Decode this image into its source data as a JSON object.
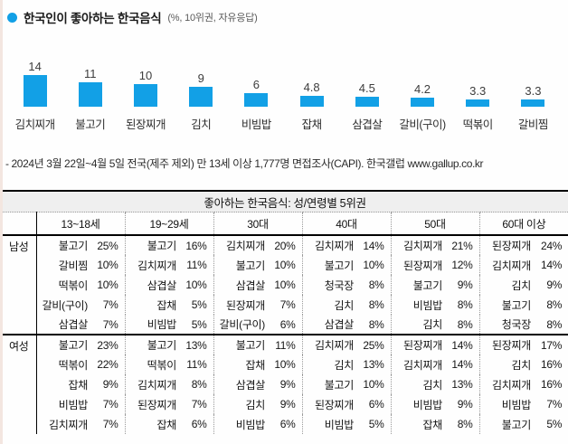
{
  "accent": {
    "bar_color": "#12a0e6",
    "bullet_color": "#12a0e6"
  },
  "header": {
    "title": "한국인이 좋아하는 한국음식",
    "subtitle": "(%, 10위권, 자유응답)"
  },
  "chart_data": {
    "type": "bar",
    "title": "한국인이 좋아하는 한국음식 (%, 10위권, 자유응답)",
    "categories": [
      "김치찌개",
      "불고기",
      "된장찌개",
      "김치",
      "비빔밥",
      "잡채",
      "삼겹살",
      "갈비(구이)",
      "떡볶이",
      "갈비찜"
    ],
    "values": [
      14,
      11,
      10,
      9,
      6,
      4.8,
      4.5,
      4.2,
      3.3,
      3.3
    ],
    "xlabel": "",
    "ylabel": "%",
    "ylim": [
      0,
      16
    ],
    "grid": false,
    "legend": false,
    "bar_color": "#12a0e6",
    "value_labels": "above bars"
  },
  "footnote": "- 2024년 3월 22일~4월 5일 전국(제주 제외) 만 13세 이상 1,777명 면접조사(CAPI). 한국갤럽 www.gallup.co.kr",
  "table": {
    "title": "좋아하는 한국음식: 성/연령별 5위권",
    "age_headers": [
      "13~18세",
      "19~29세",
      "30대",
      "40대",
      "50대",
      "60대 이상"
    ],
    "sections": [
      {
        "label": "남성",
        "columns": [
          [
            [
              "불고기",
              "25%"
            ],
            [
              "갈비찜",
              "10%"
            ],
            [
              "떡볶이",
              "10%"
            ],
            [
              "갈비(구이)",
              "7%"
            ],
            [
              "삼겹살",
              "7%"
            ]
          ],
          [
            [
              "불고기",
              "16%"
            ],
            [
              "김치찌개",
              "11%"
            ],
            [
              "삼겹살",
              "10%"
            ],
            [
              "잡채",
              "5%"
            ],
            [
              "비빔밥",
              "5%"
            ]
          ],
          [
            [
              "김치찌개",
              "20%"
            ],
            [
              "불고기",
              "10%"
            ],
            [
              "삼겹살",
              "10%"
            ],
            [
              "된장찌개",
              "7%"
            ],
            [
              "갈비(구이)",
              "6%"
            ]
          ],
          [
            [
              "김치찌개",
              "14%"
            ],
            [
              "불고기",
              "10%"
            ],
            [
              "청국장",
              "8%"
            ],
            [
              "김치",
              "8%"
            ],
            [
              "삼겹살",
              "8%"
            ]
          ],
          [
            [
              "김치찌개",
              "21%"
            ],
            [
              "된장찌개",
              "12%"
            ],
            [
              "불고기",
              "9%"
            ],
            [
              "비빔밥",
              "8%"
            ],
            [
              "김치",
              "8%"
            ]
          ],
          [
            [
              "된장찌개",
              "24%"
            ],
            [
              "김치찌개",
              "14%"
            ],
            [
              "김치",
              "9%"
            ],
            [
              "불고기",
              "8%"
            ],
            [
              "청국장",
              "8%"
            ]
          ]
        ]
      },
      {
        "label": "여성",
        "columns": [
          [
            [
              "불고기",
              "23%"
            ],
            [
              "떡볶이",
              "22%"
            ],
            [
              "잡채",
              "9%"
            ],
            [
              "비빔밥",
              "7%"
            ],
            [
              "김치찌개",
              "7%"
            ]
          ],
          [
            [
              "불고기",
              "13%"
            ],
            [
              "떡볶이",
              "11%"
            ],
            [
              "김치찌개",
              "8%"
            ],
            [
              "된장찌개",
              "7%"
            ],
            [
              "잡채",
              "6%"
            ]
          ],
          [
            [
              "불고기",
              "11%"
            ],
            [
              "잡채",
              "10%"
            ],
            [
              "삼겹살",
              "9%"
            ],
            [
              "김치",
              "9%"
            ],
            [
              "비빔밥",
              "6%"
            ]
          ],
          [
            [
              "김치찌개",
              "25%"
            ],
            [
              "김치",
              "13%"
            ],
            [
              "불고기",
              "10%"
            ],
            [
              "된장찌개",
              "6%"
            ],
            [
              "비빔밥",
              "5%"
            ]
          ],
          [
            [
              "된장찌개",
              "14%"
            ],
            [
              "김치찌개",
              "14%"
            ],
            [
              "김치",
              "13%"
            ],
            [
              "비빔밥",
              "9%"
            ],
            [
              "잡채",
              "8%"
            ]
          ],
          [
            [
              "된장찌개",
              "17%"
            ],
            [
              "김치",
              "16%"
            ],
            [
              "김치찌개",
              "16%"
            ],
            [
              "비빔밥",
              "7%"
            ],
            [
              "불고기",
              "5%"
            ]
          ]
        ]
      }
    ]
  }
}
